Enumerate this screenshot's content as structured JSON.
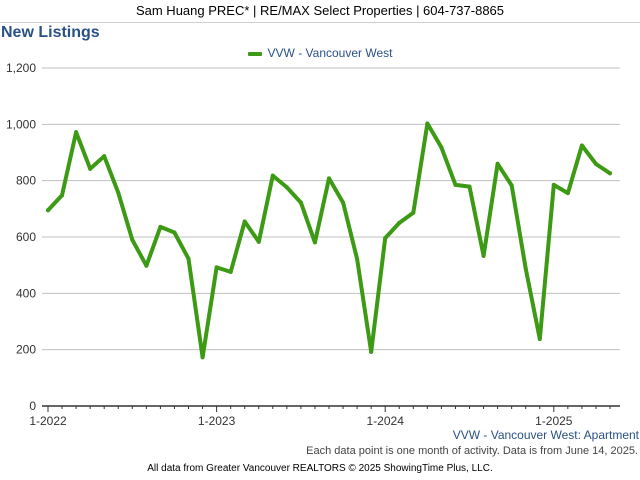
{
  "header": {
    "text": "Sam Huang PREC* | RE/MAX Select Properties | 604-737-8865"
  },
  "footer": {
    "series_label": "VVW - Vancouver West: Apartment",
    "note": "Each data point is one month of activity. Data is from June 14, 2025.",
    "source": "All data from Greater Vancouver REALTORS © 2025 ShowingTime Plus, LLC."
  },
  "chart_data": {
    "type": "line",
    "title": "New Listings",
    "xlabel": "",
    "ylabel": "",
    "ylim": [
      0,
      1200
    ],
    "yticks": [
      0,
      200,
      400,
      600,
      800,
      1000,
      1200
    ],
    "ytick_labels": [
      "0",
      "200",
      "400",
      "600",
      "800",
      "1,000",
      "1,200"
    ],
    "xticks": [
      {
        "index": 0,
        "label": "1-2022"
      },
      {
        "index": 12,
        "label": "1-2023"
      },
      {
        "index": 24,
        "label": "1-2024"
      },
      {
        "index": 36,
        "label": "1-2025"
      }
    ],
    "grid": true,
    "legend_position": "top-center",
    "colors": {
      "series": "#3c9a14",
      "grid": "#c0c0c0",
      "axis": "#333333",
      "title": "#2a5184"
    },
    "x": [
      "2022-01",
      "2022-02",
      "2022-03",
      "2022-04",
      "2022-05",
      "2022-06",
      "2022-07",
      "2022-08",
      "2022-09",
      "2022-10",
      "2022-11",
      "2022-12",
      "2023-01",
      "2023-02",
      "2023-03",
      "2023-04",
      "2023-05",
      "2023-06",
      "2023-07",
      "2023-08",
      "2023-09",
      "2023-10",
      "2023-11",
      "2023-12",
      "2024-01",
      "2024-02",
      "2024-03",
      "2024-04",
      "2024-05",
      "2024-06",
      "2024-07",
      "2024-08",
      "2024-09",
      "2024-10",
      "2024-11",
      "2024-12",
      "2025-01",
      "2025-02",
      "2025-03",
      "2025-04",
      "2025-05"
    ],
    "series": [
      {
        "name": "VVW - Vancouver West",
        "values": [
          695,
          748,
          972,
          842,
          887,
          757,
          590,
          498,
          636,
          616,
          523,
          173,
          492,
          476,
          655,
          583,
          818,
          776,
          722,
          581,
          808,
          722,
          522,
          192,
          596,
          650,
          686,
          1003,
          918,
          785,
          779,
          533,
          860,
          783,
          488,
          238,
          785,
          756,
          925,
          859,
          826
        ]
      }
    ]
  }
}
